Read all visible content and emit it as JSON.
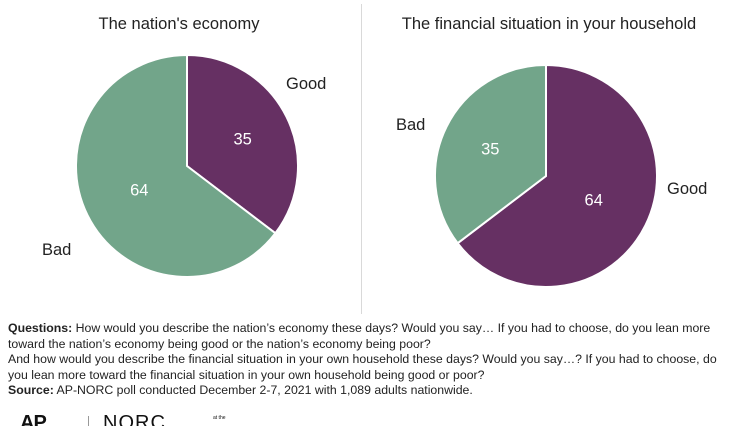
{
  "colors": {
    "good": "#663063",
    "bad": "#72a58a",
    "text": "#222222"
  },
  "chart_data": [
    {
      "type": "pie",
      "title": "The nation's economy",
      "slices": [
        {
          "label": "Good",
          "value": 35,
          "color": "#663063"
        },
        {
          "label": "Bad",
          "value": 64,
          "color": "#72a58a"
        }
      ]
    },
    {
      "type": "pie",
      "title": "The financial situation in your household",
      "slices": [
        {
          "label": "Good",
          "value": 64,
          "color": "#663063"
        },
        {
          "label": "Bad",
          "value": 35,
          "color": "#72a58a"
        }
      ]
    }
  ],
  "notes": {
    "questions_label": "Questions:",
    "questions_text_1": " How would you describe the nation’s economy these days? Would you say… If you had to choose, do you lean more toward the nation’s economy being good or the nation’s economy being poor?",
    "questions_text_2": "And how would you describe the financial situation in your own household these days? Would you say…? If you had to choose, do you lean more toward the financial situation in your own household being good or poor?",
    "source_label": "Source:",
    "source_text": " AP-NORC poll conducted December 2-7, 2021 with 1,089 adults nationwide."
  },
  "logos": {
    "ap": "AP",
    "norc": "NORC",
    "norc_small": "at the"
  }
}
